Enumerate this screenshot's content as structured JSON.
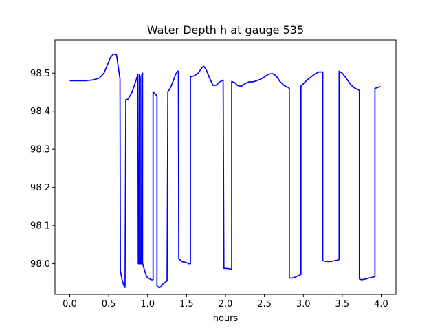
{
  "chart_data": {
    "type": "line",
    "title": "Water Depth h at gauge 535",
    "xlabel": "hours",
    "ylabel": "",
    "xlim": [
      -0.19,
      4.19
    ],
    "ylim": [
      97.92,
      98.587
    ],
    "xticks": [
      0.0,
      0.5,
      1.0,
      1.5,
      2.0,
      2.5,
      3.0,
      3.5,
      4.0
    ],
    "xtick_labels": [
      "0.0",
      "0.5",
      "1.0",
      "1.5",
      "2.0",
      "2.5",
      "3.0",
      "3.5",
      "4.0"
    ],
    "yticks": [
      98.0,
      98.1,
      98.2,
      98.3,
      98.4,
      98.5
    ],
    "ytick_labels": [
      "98.0",
      "98.1",
      "98.2",
      "98.3",
      "98.4",
      "98.5"
    ],
    "grid": false,
    "legend": false,
    "series": [
      {
        "color": "#0000ff",
        "points": [
          [
            0.0,
            98.48
          ],
          [
            0.2,
            98.48
          ],
          [
            0.3,
            98.482
          ],
          [
            0.38,
            98.487
          ],
          [
            0.44,
            98.5
          ],
          [
            0.48,
            98.52
          ],
          [
            0.52,
            98.54
          ],
          [
            0.56,
            98.55
          ],
          [
            0.6,
            98.548
          ],
          [
            0.62,
            98.52
          ],
          [
            0.645,
            98.485
          ],
          [
            0.65,
            97.982
          ],
          [
            0.67,
            97.96
          ],
          [
            0.69,
            97.945
          ],
          [
            0.71,
            97.938
          ],
          [
            0.72,
            98.43
          ],
          [
            0.75,
            98.432
          ],
          [
            0.8,
            98.45
          ],
          [
            0.85,
            98.48
          ],
          [
            0.875,
            98.497
          ],
          [
            0.88,
            98.0
          ],
          [
            0.89,
            98.0
          ],
          [
            0.895,
            98.497
          ],
          [
            0.905,
            98.49
          ],
          [
            0.905,
            98.003
          ],
          [
            0.91,
            98.0
          ],
          [
            0.92,
            98.0
          ],
          [
            0.925,
            98.497
          ],
          [
            0.935,
            98.5
          ],
          [
            0.935,
            98.002
          ],
          [
            0.95,
            97.99
          ],
          [
            0.98,
            97.97
          ],
          [
            1.0,
            97.963
          ],
          [
            1.05,
            97.958
          ],
          [
            1.07,
            97.958
          ],
          [
            1.07,
            98.45
          ],
          [
            1.1,
            98.445
          ],
          [
            1.12,
            98.44
          ],
          [
            1.12,
            97.942
          ],
          [
            1.15,
            97.937
          ],
          [
            1.17,
            97.94
          ],
          [
            1.2,
            97.948
          ],
          [
            1.25,
            97.955
          ],
          [
            1.26,
            98.45
          ],
          [
            1.3,
            98.465
          ],
          [
            1.33,
            98.48
          ],
          [
            1.36,
            98.497
          ],
          [
            1.385,
            98.505
          ],
          [
            1.395,
            98.505
          ],
          [
            1.4,
            98.013
          ],
          [
            1.45,
            98.005
          ],
          [
            1.5,
            98.003
          ],
          [
            1.53,
            98.0
          ],
          [
            1.55,
            98.0
          ],
          [
            1.55,
            98.49
          ],
          [
            1.6,
            98.493
          ],
          [
            1.65,
            98.5
          ],
          [
            1.7,
            98.515
          ],
          [
            1.72,
            98.518
          ],
          [
            1.75,
            98.51
          ],
          [
            1.8,
            98.485
          ],
          [
            1.84,
            98.468
          ],
          [
            1.88,
            98.468
          ],
          [
            1.92,
            98.476
          ],
          [
            1.97,
            98.482
          ],
          [
            1.98,
            97.988
          ],
          [
            2.0,
            97.988
          ],
          [
            2.05,
            97.987
          ],
          [
            2.08,
            97.985
          ],
          [
            2.08,
            98.478
          ],
          [
            2.12,
            98.475
          ],
          [
            2.15,
            98.468
          ],
          [
            2.2,
            98.465
          ],
          [
            2.25,
            98.472
          ],
          [
            2.3,
            98.477
          ],
          [
            2.35,
            98.477
          ],
          [
            2.4,
            98.48
          ],
          [
            2.45,
            98.484
          ],
          [
            2.5,
            98.49
          ],
          [
            2.55,
            98.497
          ],
          [
            2.6,
            98.499
          ],
          [
            2.65,
            98.493
          ],
          [
            2.7,
            98.478
          ],
          [
            2.75,
            98.468
          ],
          [
            2.8,
            98.463
          ],
          [
            2.82,
            98.46
          ],
          [
            2.82,
            97.963
          ],
          [
            2.85,
            97.962
          ],
          [
            2.9,
            97.965
          ],
          [
            2.95,
            97.97
          ],
          [
            2.97,
            97.972
          ],
          [
            2.97,
            98.466
          ],
          [
            3.0,
            98.472
          ],
          [
            3.05,
            98.482
          ],
          [
            3.1,
            98.49
          ],
          [
            3.15,
            98.498
          ],
          [
            3.2,
            98.503
          ],
          [
            3.25,
            98.503
          ],
          [
            3.25,
            98.008
          ],
          [
            3.3,
            98.006
          ],
          [
            3.35,
            98.006
          ],
          [
            3.4,
            98.008
          ],
          [
            3.45,
            98.01
          ],
          [
            3.46,
            98.012
          ],
          [
            3.46,
            98.505
          ],
          [
            3.5,
            98.5
          ],
          [
            3.55,
            98.487
          ],
          [
            3.6,
            98.472
          ],
          [
            3.65,
            98.462
          ],
          [
            3.7,
            98.457
          ],
          [
            3.72,
            98.455
          ],
          [
            3.72,
            97.96
          ],
          [
            3.75,
            97.958
          ],
          [
            3.8,
            97.96
          ],
          [
            3.85,
            97.963
          ],
          [
            3.9,
            97.965
          ],
          [
            3.92,
            97.967
          ],
          [
            3.92,
            98.46
          ],
          [
            3.95,
            98.462
          ],
          [
            3.99,
            98.465
          ]
        ]
      }
    ]
  }
}
